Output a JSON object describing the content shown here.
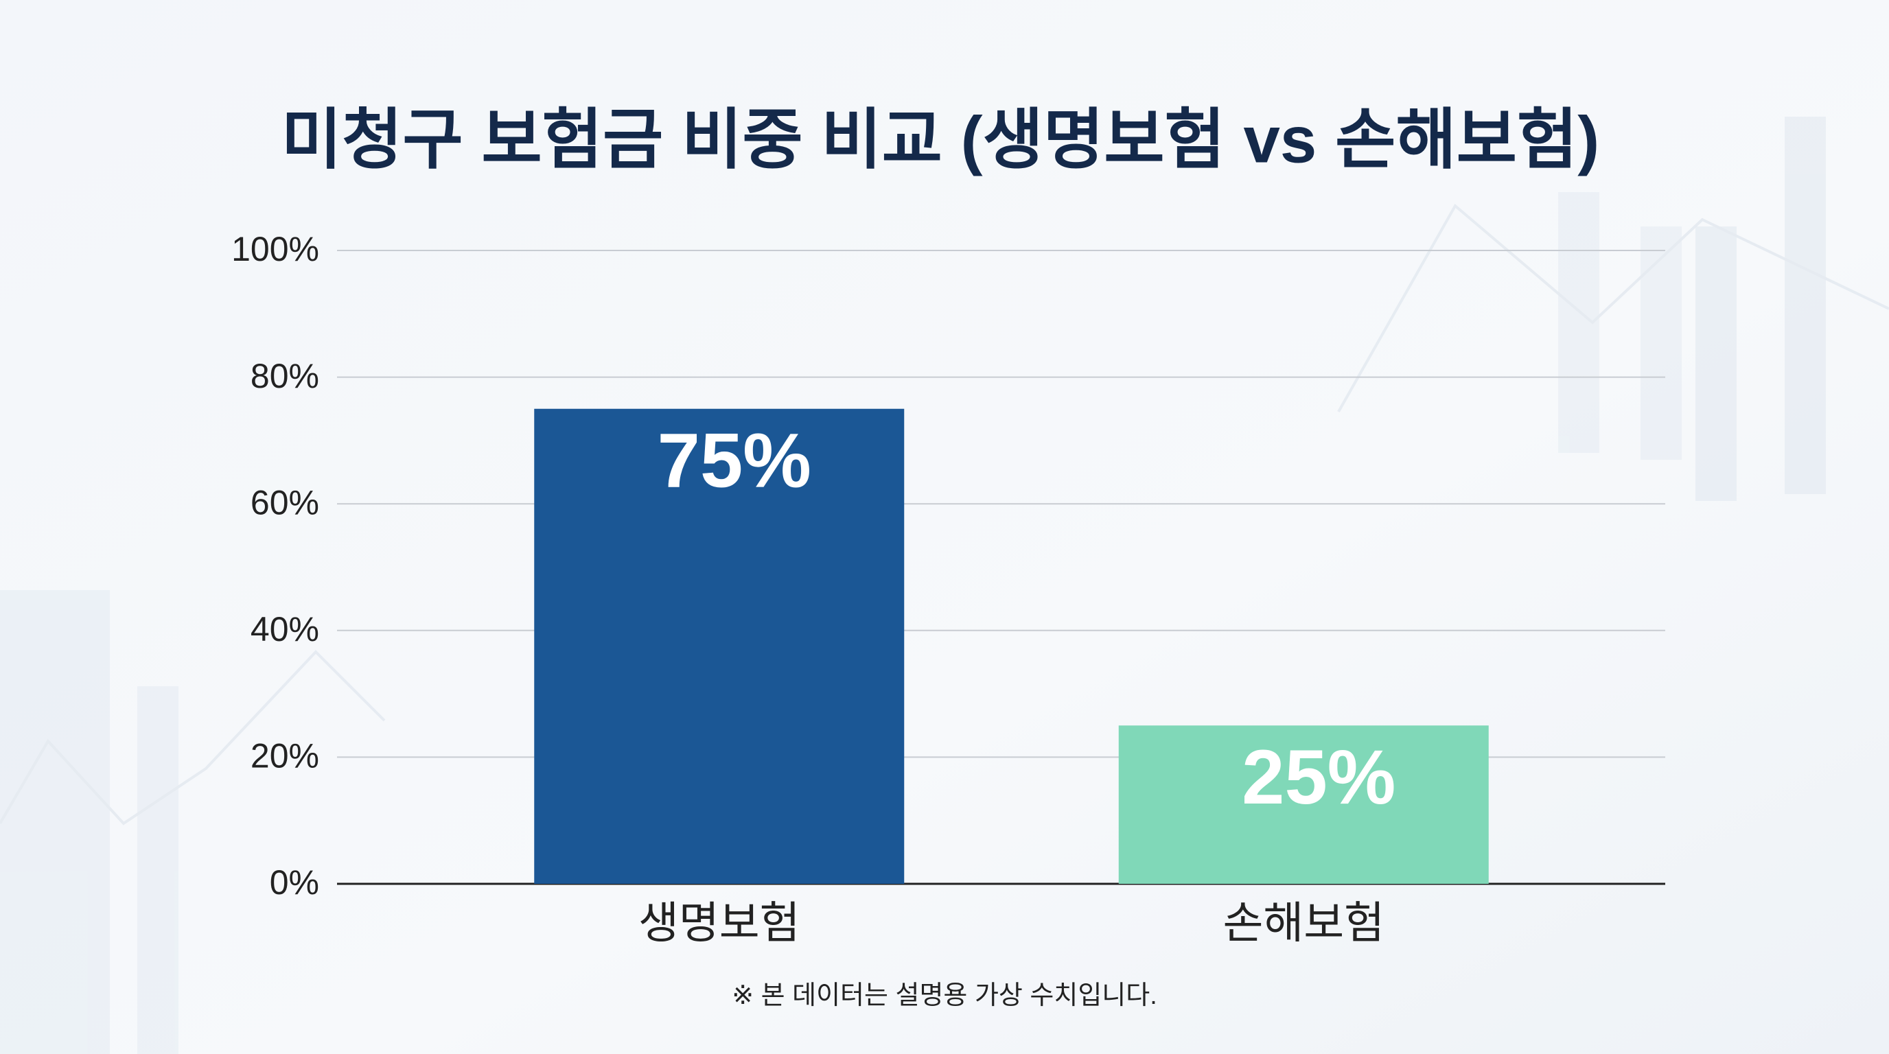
{
  "chart_data": {
    "type": "bar",
    "title": "미청구 보험금 비중 비교 (생명보험 vs 손해보험)",
    "categories": [
      "생명보험",
      "손해보험"
    ],
    "values": [
      75,
      25
    ],
    "value_labels": [
      "75%",
      "25%"
    ],
    "colors": [
      "#1b5795",
      "#80d8b8"
    ],
    "ylim": [
      0,
      100
    ],
    "yticks": [
      {
        "value": 0,
        "label": "0%"
      },
      {
        "value": 20,
        "label": "20%"
      },
      {
        "value": 40,
        "label": "40%"
      },
      {
        "value": 60,
        "label": "60%"
      },
      {
        "value": 80,
        "label": "80%"
      },
      {
        "value": 100,
        "label": "100%"
      }
    ],
    "grid": true,
    "note": "※ 본 데이터는 설명용 가상 수치입니다."
  }
}
